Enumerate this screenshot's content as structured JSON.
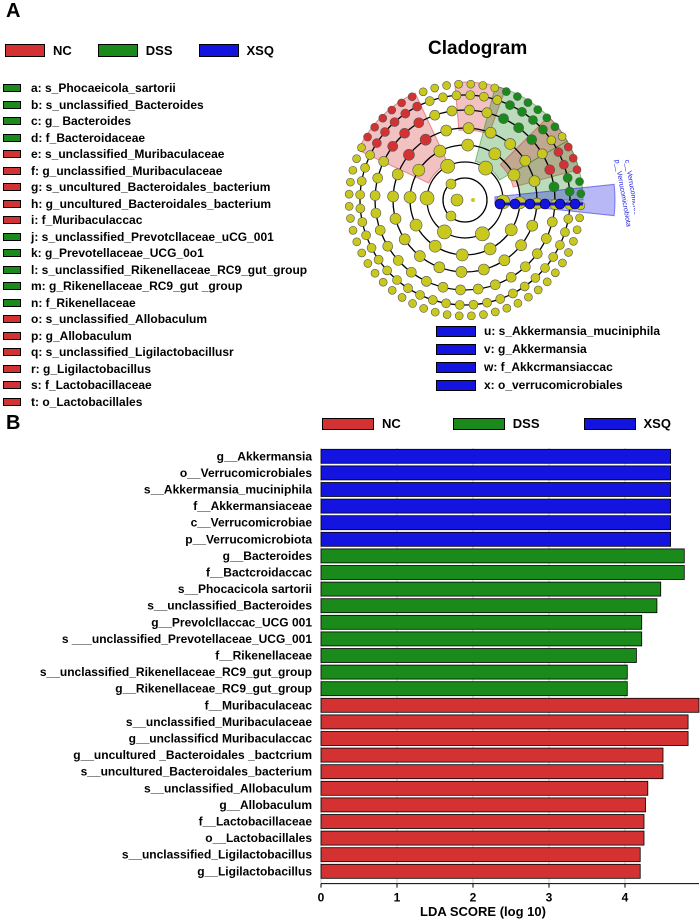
{
  "panel_a": {
    "letter": "A",
    "legend": [
      {
        "label": "NC",
        "color": "#d43232"
      },
      {
        "label": "DSS",
        "color": "#1a8a1a"
      },
      {
        "label": "XSQ",
        "color": "#1414e0"
      }
    ],
    "cladogram_title": "Cladogram",
    "taxa": [
      {
        "text": "a: s_Phocaeicola_sartorii",
        "color": "#1a8a1a"
      },
      {
        "text": "b: s_unclassified_Bacteroides",
        "color": "#1a8a1a"
      },
      {
        "text": "c: g_ Bacteroides",
        "color": "#1a8a1a"
      },
      {
        "text": "d: f_Bacteroidaceae",
        "color": "#1a8a1a"
      },
      {
        "text": "e: s_unclassified_Muribaculaceae",
        "color": "#d43232"
      },
      {
        "text": "f: g_unclassified_Muribaculaceae",
        "color": "#d43232"
      },
      {
        "text": "g: s_uncultured_Bacteroidales_bacterium",
        "color": "#d43232"
      },
      {
        "text": "h: g_uncultured_Bacteroidales_bacterium",
        "color": "#d43232"
      },
      {
        "text": "i: f_Muribaculaccac",
        "color": "#d43232"
      },
      {
        "text": "j: s_unclassified_Prevotcllaceae_uCG_001",
        "color": "#1a8a1a"
      },
      {
        "text": "k: g_Prevotellaceae_UCG_0o1",
        "color": "#1a8a1a"
      },
      {
        "text": "l: s_unclassified_Rikenellaceae_RC9_gut_group",
        "color": "#1a8a1a"
      },
      {
        "text": "m: g_Rikenellaceae_RC9_gut _group",
        "color": "#1a8a1a"
      },
      {
        "text": "n: f_Rikenellaceae",
        "color": "#1a8a1a"
      },
      {
        "text": "o: s_unclassified_Allobaculum",
        "color": "#d43232"
      },
      {
        "text": "p: g_Allobaculum",
        "color": "#d43232"
      },
      {
        "text": "q: s_unclassified_Ligilactobacillusr",
        "color": "#d43232"
      },
      {
        "text": "r: g_Ligilactobacillus",
        "color": "#d43232"
      },
      {
        "text": "s: f_Lactobacillaceae",
        "color": "#d43232"
      },
      {
        "text": "t: o_Lactobacillales",
        "color": "#d43232"
      }
    ],
    "taxa_uvwx": [
      {
        "text": "u: s_Akkermansia_muciniphila",
        "color": "#1414e0"
      },
      {
        "text": "v: g_Akkermansia",
        "color": "#1414e0"
      },
      {
        "text": "w: f_Akkcrmansiaccac",
        "color": "#1414e0"
      },
      {
        "text": "x: o_verrucomicrobiales",
        "color": "#1414e0"
      }
    ],
    "cladogram_labels": [
      "p__Verrucomicrobiota",
      "c__Verrucomicrobiae"
    ]
  },
  "panel_b": {
    "letter": "B",
    "legend": [
      {
        "label": "NC",
        "color": "#d43232"
      },
      {
        "label": "DSS",
        "color": "#1a8a1a"
      },
      {
        "label": "XSQ",
        "color": "#1414e0"
      }
    ]
  },
  "chart_data": {
    "type": "bar",
    "orientation": "horizontal",
    "xlabel": "LDA SCORE (log 10)",
    "xlim": [
      0,
      4.8
    ],
    "xticks": [
      "0",
      "1",
      "2",
      "3",
      "4"
    ],
    "grid": "vertical",
    "legend_position": "top",
    "bars": [
      {
        "label": "g__Akkermansia",
        "value": 4.6,
        "group": "XSQ"
      },
      {
        "label": "o__Verrucomicrobiales",
        "value": 4.6,
        "group": "XSQ"
      },
      {
        "label": "s__Akkermansia_muciniphila",
        "value": 4.6,
        "group": "XSQ"
      },
      {
        "label": "f__Akkermansiaceae",
        "value": 4.6,
        "group": "XSQ"
      },
      {
        "label": "c__Verrucomicrobiae",
        "value": 4.6,
        "group": "XSQ"
      },
      {
        "label": "p__Verrucomicrobiota",
        "value": 4.6,
        "group": "XSQ"
      },
      {
        "label": "g__Bacteroides",
        "value": 4.78,
        "group": "DSS"
      },
      {
        "label": "f__Bactcroidaccac",
        "value": 4.78,
        "group": "DSS"
      },
      {
        "label": "s__Phocacicola sartorii",
        "value": 4.47,
        "group": "DSS"
      },
      {
        "label": "s__unclassified_Bacteroides",
        "value": 4.42,
        "group": "DSS"
      },
      {
        "label": "g__Prevolcllaccac_UCG 001",
        "value": 4.22,
        "group": "DSS"
      },
      {
        "label": "s ___unclassified_Prevotellaceae_UCG_001",
        "value": 4.22,
        "group": "DSS"
      },
      {
        "label": "f__Rikenellaceae",
        "value": 4.15,
        "group": "DSS"
      },
      {
        "label": "s__unclassified_Rikenellaceae_RC9_gut_group",
        "value": 4.03,
        "group": "DSS"
      },
      {
        "label": "g__Rikenellaceae_RC9_gut_group",
        "value": 4.03,
        "group": "DSS"
      },
      {
        "label": "f__Muribaculaceac",
        "value": 5.0,
        "group": "NC"
      },
      {
        "label": "s__unclassified_Muribaculaceae",
        "value": 4.83,
        "group": "NC"
      },
      {
        "label": "g__unclassificd Muribaculaccac",
        "value": 4.83,
        "group": "NC"
      },
      {
        "label": "g__uncultured _Bacteroidales _bactcrium",
        "value": 4.5,
        "group": "NC"
      },
      {
        "label": "s__uncultured_Bacteroidales_bacterium",
        "value": 4.5,
        "group": "NC"
      },
      {
        "label": "s__unclassified_Allobaculum",
        "value": 4.3,
        "group": "NC"
      },
      {
        "label": "g__Allobaculum",
        "value": 4.27,
        "group": "NC"
      },
      {
        "label": "f__Lactobacillaceae",
        "value": 4.25,
        "group": "NC"
      },
      {
        "label": "o__Lactobacillales",
        "value": 4.25,
        "group": "NC"
      },
      {
        "label": "s__unclassified_Ligilactobacillus",
        "value": 4.2,
        "group": "NC"
      },
      {
        "label": "g__Ligilactobacillus",
        "value": 4.2,
        "group": "NC"
      }
    ],
    "group_colors": {
      "NC": "#d43232",
      "DSS": "#1a8a1a",
      "XSQ": "#1414e0"
    }
  }
}
